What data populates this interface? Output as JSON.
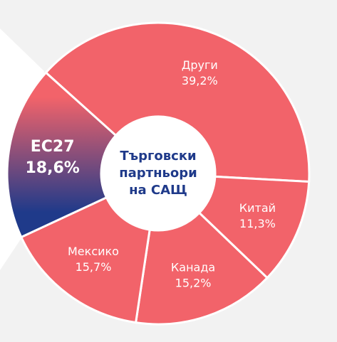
{
  "chart_data": {
    "type": "donut",
    "center_label_lines": [
      "Търговски",
      "партньори",
      "на САЩ"
    ],
    "categories": [
      "Други",
      "Китай",
      "Канада",
      "Мексико",
      "ЕС27"
    ],
    "values": [
      39.2,
      11.3,
      15.2,
      15.7,
      18.6
    ],
    "value_labels": [
      "39,2%",
      "11,3%",
      "15,2%",
      "15,7%",
      "18,6%"
    ],
    "colors": [
      "#f2636a",
      "#f2636a",
      "#f2636a",
      "#f2636a",
      "#1f3a8a"
    ]
  }
}
